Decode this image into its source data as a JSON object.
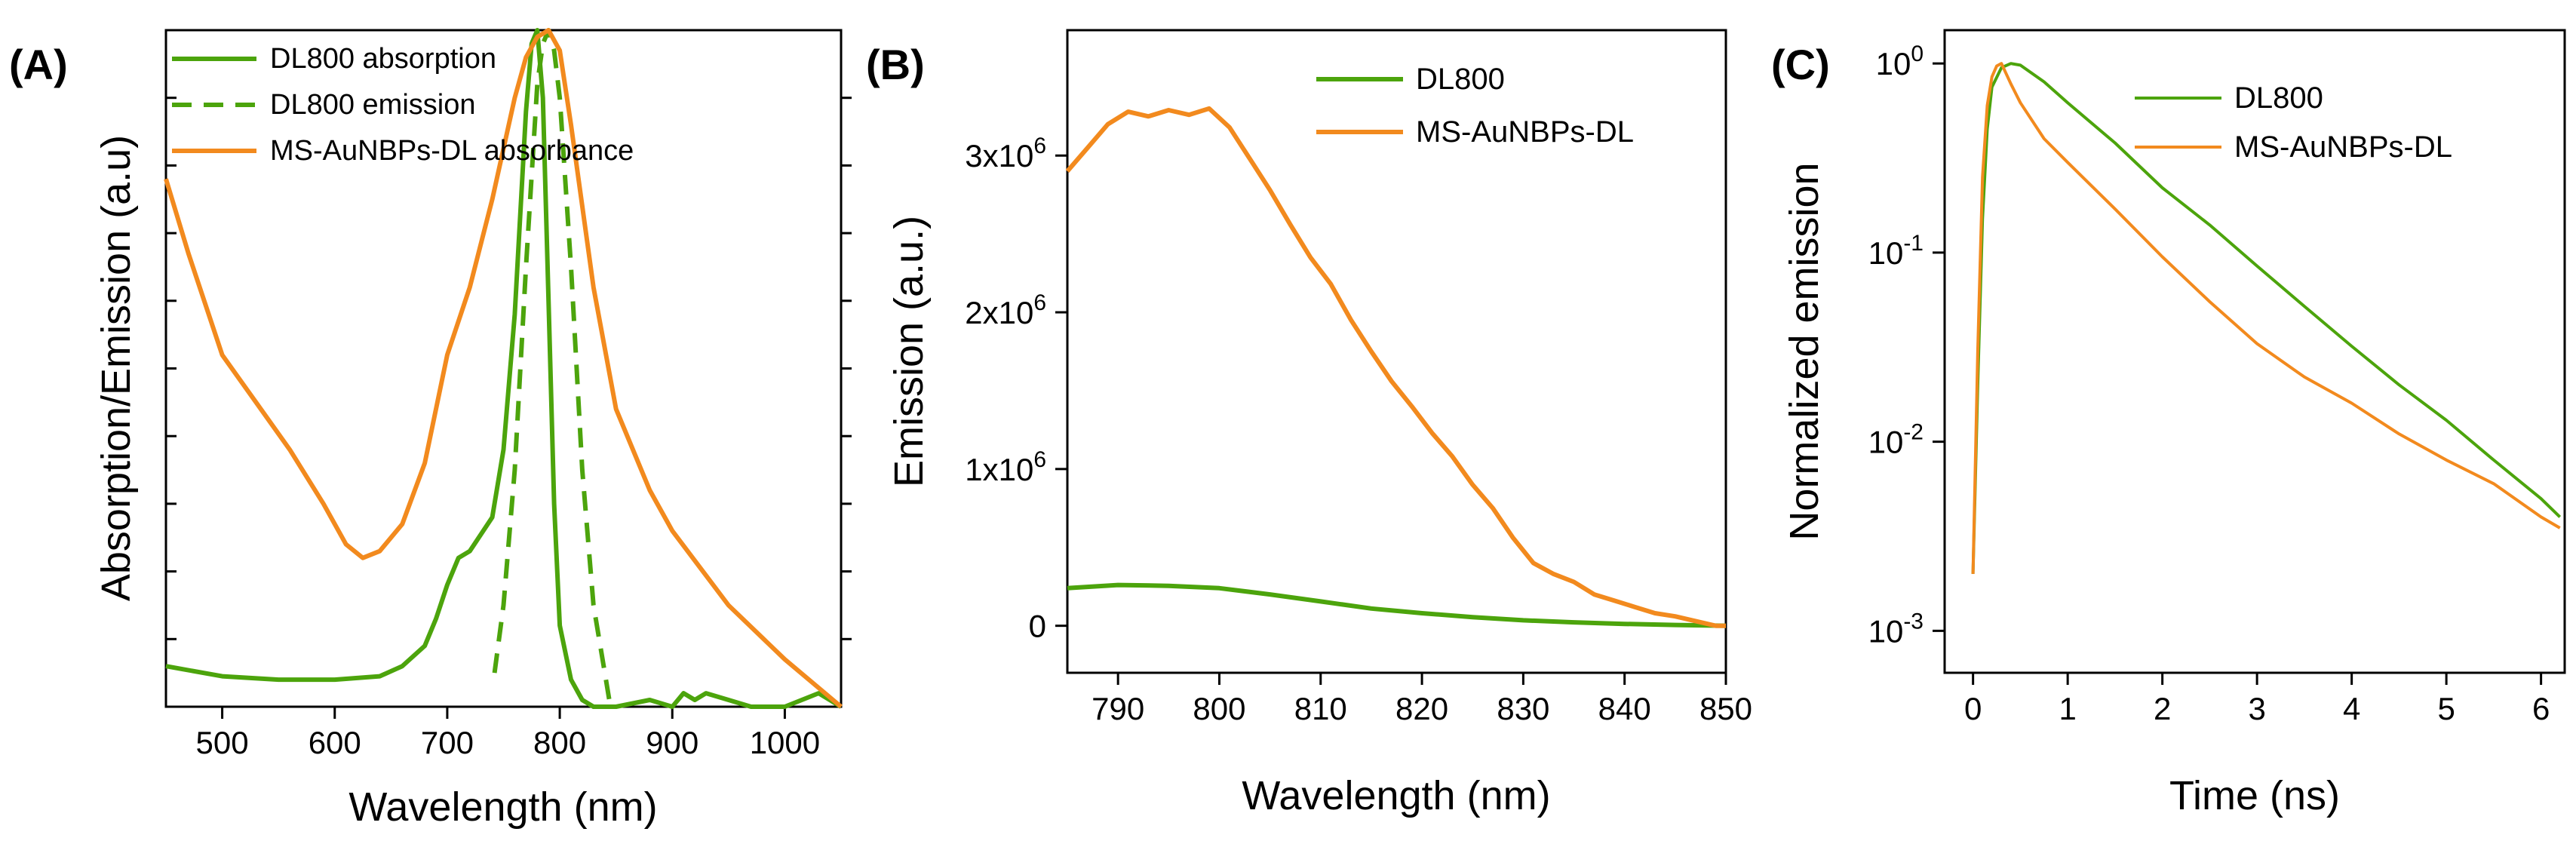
{
  "chart_data": [
    {
      "panel": "(A)",
      "type": "line",
      "xlabel": "Wavelength (nm)",
      "ylabel": "Absorption/Emission (a.u)",
      "xlim": [
        450,
        1050
      ],
      "ylim": [
        0,
        1.0
      ],
      "xticks": [
        500,
        600,
        700,
        800,
        900,
        1000
      ],
      "series": [
        {
          "name": "DL800 absorption",
          "style": "solid",
          "color": "#4CA40C",
          "x": [
            450,
            500,
            550,
            600,
            640,
            660,
            680,
            690,
            700,
            710,
            720,
            740,
            750,
            760,
            770,
            775,
            780,
            785,
            790,
            795,
            800,
            810,
            820,
            830,
            850,
            880,
            900,
            910,
            920,
            930,
            950,
            970,
            1000,
            1030,
            1050
          ],
          "y": [
            0.06,
            0.045,
            0.04,
            0.04,
            0.045,
            0.06,
            0.09,
            0.13,
            0.18,
            0.22,
            0.23,
            0.28,
            0.38,
            0.58,
            0.88,
            0.98,
            1.0,
            0.9,
            0.6,
            0.3,
            0.12,
            0.04,
            0.01,
            0.0,
            0.0,
            0.01,
            0.0,
            0.02,
            0.01,
            0.02,
            0.01,
            0.0,
            0.0,
            0.02,
            0.0
          ]
        },
        {
          "name": "DL800 emission",
          "style": "dashed",
          "color": "#4CA40C",
          "x": [
            742,
            750,
            760,
            770,
            780,
            785,
            790,
            795,
            800,
            810,
            820,
            830,
            840,
            845
          ],
          "y": [
            0.05,
            0.15,
            0.35,
            0.65,
            0.92,
            0.98,
            1.0,
            0.97,
            0.9,
            0.65,
            0.35,
            0.15,
            0.05,
            0.0
          ]
        },
        {
          "name": "MS-AuNBPs-DL absorbance",
          "style": "solid",
          "color": "#F28A1E",
          "x": [
            450,
            470,
            500,
            530,
            560,
            590,
            610,
            625,
            640,
            660,
            680,
            700,
            720,
            740,
            760,
            770,
            780,
            790,
            800,
            810,
            830,
            850,
            880,
            900,
            950,
            1000,
            1050
          ],
          "y": [
            0.78,
            0.67,
            0.52,
            0.45,
            0.38,
            0.3,
            0.24,
            0.22,
            0.23,
            0.27,
            0.36,
            0.52,
            0.62,
            0.75,
            0.9,
            0.96,
            0.99,
            1.0,
            0.97,
            0.86,
            0.62,
            0.44,
            0.32,
            0.26,
            0.15,
            0.07,
            0.0
          ]
        }
      ],
      "legend": [
        "DL800 absorption",
        "DL800 emission",
        "MS-AuNBPs-DL absorbance"
      ],
      "legend_position": "top-left"
    },
    {
      "panel": "(B)",
      "type": "line",
      "xlabel": "Wavelength (nm)",
      "ylabel": "Emission (a.u.)",
      "xlim": [
        785,
        850
      ],
      "ylim": [
        -300000,
        3800000
      ],
      "xticks": [
        790,
        800,
        810,
        820,
        830,
        840,
        850
      ],
      "yticks": [
        0,
        1000000,
        2000000,
        3000000
      ],
      "ytick_labels": [
        "0",
        "1x10",
        "2x10",
        "3x10"
      ],
      "ytick_exponents": [
        "",
        "6",
        "6",
        "6"
      ],
      "series": [
        {
          "name": "DL800",
          "color": "#4CA40C",
          "x": [
            785,
            790,
            795,
            800,
            805,
            810,
            815,
            820,
            825,
            830,
            835,
            840,
            845,
            850
          ],
          "y": [
            240000,
            260000,
            255000,
            240000,
            200000,
            155000,
            110000,
            80000,
            55000,
            35000,
            22000,
            12000,
            5000,
            0
          ]
        },
        {
          "name": "MS-AuNBPs-DL",
          "color": "#F28A1E",
          "x": [
            785,
            787,
            789,
            791,
            793,
            795,
            797,
            799,
            801,
            803,
            805,
            807,
            809,
            811,
            813,
            815,
            817,
            819,
            821,
            823,
            825,
            827,
            829,
            831,
            833,
            835,
            837,
            839,
            841,
            843,
            845,
            847,
            849,
            850
          ],
          "y": [
            2900000,
            3050000,
            3200000,
            3280000,
            3250000,
            3290000,
            3260000,
            3300000,
            3180000,
            2980000,
            2780000,
            2560000,
            2350000,
            2180000,
            1950000,
            1750000,
            1560000,
            1400000,
            1230000,
            1080000,
            900000,
            750000,
            560000,
            400000,
            330000,
            280000,
            200000,
            160000,
            120000,
            80000,
            60000,
            30000,
            0,
            0
          ]
        }
      ],
      "legend": [
        "DL800",
        "MS-AuNBPs-DL"
      ],
      "legend_position": "top-right"
    },
    {
      "panel": "(C)",
      "type": "line",
      "xlabel": "Time (ns)",
      "ylabel": "Normalized emission",
      "yscale": "log",
      "xlim": [
        -0.3,
        6.25
      ],
      "ylim": [
        0.0006,
        1.5
      ],
      "xticks": [
        0,
        1,
        2,
        3,
        4,
        5,
        6
      ],
      "yticks": [
        0.001,
        0.01,
        0.1,
        1
      ],
      "ytick_labels": [
        "10",
        "10",
        "10",
        "10"
      ],
      "ytick_exponents": [
        "-3",
        "-2",
        "-1",
        "0"
      ],
      "series": [
        {
          "name": "DL800",
          "color": "#4CA40C",
          "x": [
            0.0,
            0.05,
            0.1,
            0.15,
            0.2,
            0.3,
            0.4,
            0.5,
            0.75,
            1.0,
            1.5,
            2.0,
            2.5,
            3.0,
            3.5,
            4.0,
            4.5,
            5.0,
            5.5,
            6.0,
            6.2
          ],
          "y": [
            0.002,
            0.02,
            0.15,
            0.45,
            0.75,
            0.95,
            1.0,
            0.98,
            0.8,
            0.62,
            0.38,
            0.22,
            0.14,
            0.085,
            0.052,
            0.032,
            0.02,
            0.013,
            0.008,
            0.005,
            0.004
          ]
        },
        {
          "name": "MS-AuNBPs-DL",
          "color": "#F28A1E",
          "x": [
            0.0,
            0.05,
            0.1,
            0.15,
            0.2,
            0.25,
            0.3,
            0.4,
            0.5,
            0.75,
            1.0,
            1.5,
            2.0,
            2.5,
            3.0,
            3.5,
            4.0,
            4.5,
            5.0,
            5.5,
            6.0,
            6.2
          ],
          "y": [
            0.002,
            0.03,
            0.25,
            0.6,
            0.85,
            0.97,
            1.0,
            0.78,
            0.62,
            0.4,
            0.3,
            0.17,
            0.095,
            0.055,
            0.033,
            0.022,
            0.016,
            0.011,
            0.008,
            0.006,
            0.004,
            0.0035
          ]
        }
      ],
      "legend": [
        "DL800",
        "MS-AuNBPs-DL"
      ],
      "legend_position": "top-right"
    }
  ]
}
